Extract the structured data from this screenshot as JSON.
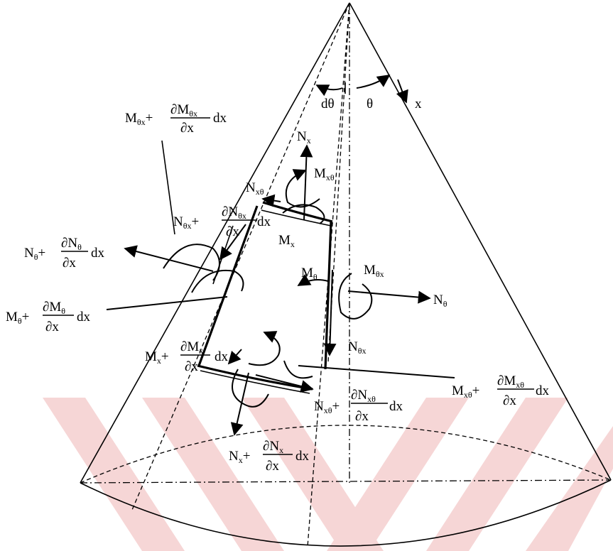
{
  "labels": {
    "theta": "θ",
    "dtheta": "dθ",
    "x_axis": "x",
    "N_x": "N",
    "M_x_theta": "M",
    "N_x_theta": "N",
    "M_x": "M",
    "M_theta": "M",
    "M_theta_x": "M",
    "N_theta": "N",
    "N_theta_x": "N",
    "plus": "+",
    "dx": "dx",
    "partial": "∂",
    "partial_x": "∂x"
  },
  "subscripts": {
    "x": "x",
    "xtheta": "xθ",
    "thetax": "θx",
    "theta": "θ"
  }
}
